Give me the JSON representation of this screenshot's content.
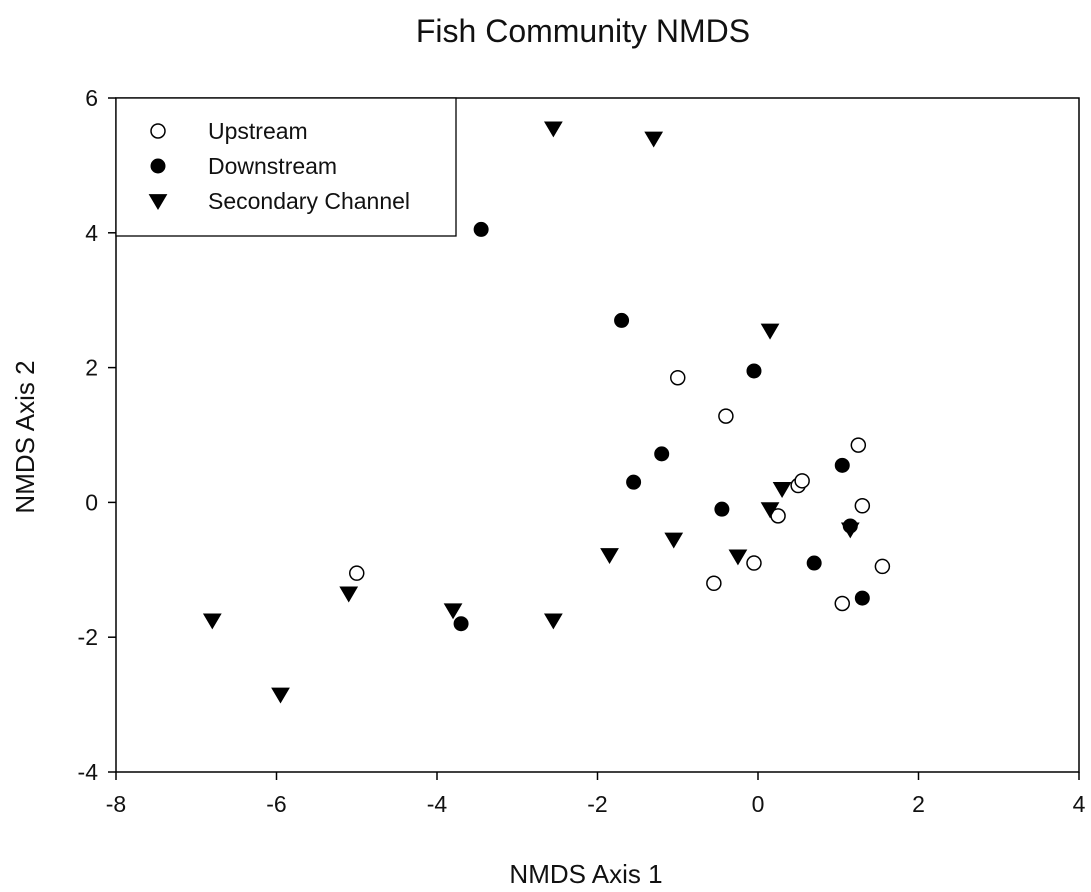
{
  "chart_data": {
    "type": "scatter",
    "title": "Fish Community NMDS",
    "xlabel": "NMDS Axis 1",
    "ylabel": "NMDS Axis 2",
    "xlim": [
      -8,
      4
    ],
    "ylim": [
      -4,
      6
    ],
    "x_ticks": [
      "-8",
      "-6",
      "-4",
      "-2",
      "0",
      "2",
      "4"
    ],
    "y_ticks": [
      "-4",
      "-2",
      "0",
      "2",
      "4",
      "6"
    ],
    "grid": false,
    "legend_position": "top-left",
    "series": [
      {
        "name": "Upstream",
        "marker": "open-circle",
        "color": "#000000",
        "points": [
          {
            "x": -5.0,
            "y": -1.05
          },
          {
            "x": -1.0,
            "y": 1.85
          },
          {
            "x": -0.4,
            "y": 1.28
          },
          {
            "x": 1.25,
            "y": 0.85
          },
          {
            "x": 0.5,
            "y": 0.25
          },
          {
            "x": 0.55,
            "y": 0.32
          },
          {
            "x": 1.3,
            "y": -0.05
          },
          {
            "x": 0.25,
            "y": -0.2
          },
          {
            "x": -0.05,
            "y": -0.9
          },
          {
            "x": -0.55,
            "y": -1.2
          },
          {
            "x": 1.55,
            "y": -0.95
          },
          {
            "x": 1.05,
            "y": -1.5
          }
        ]
      },
      {
        "name": "Downstream",
        "marker": "filled-circle",
        "color": "#000000",
        "points": [
          {
            "x": -3.45,
            "y": 4.05
          },
          {
            "x": -1.7,
            "y": 2.7
          },
          {
            "x": -0.05,
            "y": 1.95
          },
          {
            "x": -1.2,
            "y": 0.72
          },
          {
            "x": -1.55,
            "y": 0.3
          },
          {
            "x": 1.05,
            "y": 0.55
          },
          {
            "x": -0.45,
            "y": -0.1
          },
          {
            "x": 1.15,
            "y": -0.35
          },
          {
            "x": 0.7,
            "y": -0.9
          },
          {
            "x": 1.3,
            "y": -1.42
          },
          {
            "x": -3.7,
            "y": -1.8
          }
        ]
      },
      {
        "name": "Secondary Channel",
        "marker": "filled-triangle-down",
        "color": "#000000",
        "points": [
          {
            "x": -2.55,
            "y": 5.55
          },
          {
            "x": -1.3,
            "y": 5.4
          },
          {
            "x": 0.15,
            "y": 2.55
          },
          {
            "x": 0.3,
            "y": 0.2
          },
          {
            "x": 0.15,
            "y": -0.1
          },
          {
            "x": 1.15,
            "y": -0.4
          },
          {
            "x": -0.25,
            "y": -0.8
          },
          {
            "x": -1.05,
            "y": -0.55
          },
          {
            "x": -1.85,
            "y": -0.78
          },
          {
            "x": -2.55,
            "y": -1.75
          },
          {
            "x": -3.8,
            "y": -1.6
          },
          {
            "x": -5.1,
            "y": -1.35
          },
          {
            "x": -6.8,
            "y": -1.75
          },
          {
            "x": -5.95,
            "y": -2.85
          }
        ]
      }
    ]
  }
}
